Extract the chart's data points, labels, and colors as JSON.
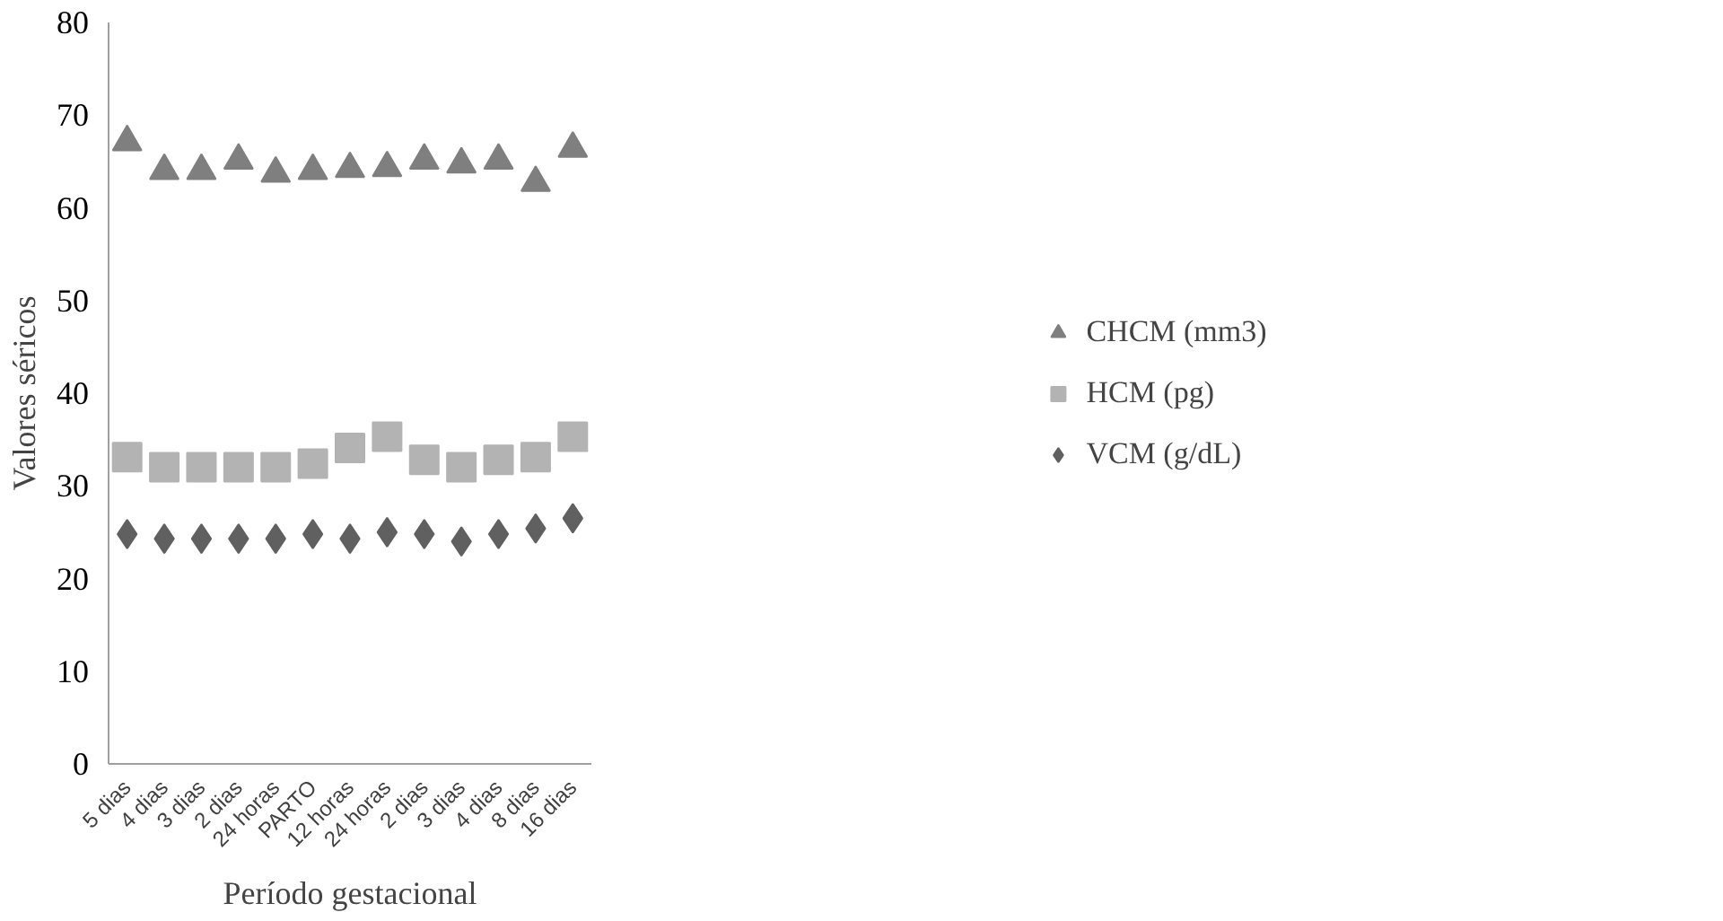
{
  "chart_data": {
    "type": "scatter",
    "xlabel": "Período gestacional",
    "ylabel": "Valores séricos",
    "categories": [
      "5 dias",
      "4 dias",
      "3 dias",
      "2 dias",
      "24 horas",
      "PARTO",
      "12 horas",
      "24 horas",
      "2 dias",
      "3 dias",
      "4 dias",
      "8 dias",
      "16 dias"
    ],
    "series": [
      {
        "name": "CHCM (mm3)",
        "color": "#7f7f7f",
        "marker": "triangle",
        "values": [
          67.1,
          64.0,
          64.0,
          65.1,
          63.7,
          64.0,
          64.2,
          64.3,
          65.1,
          64.7,
          65.1,
          62.7,
          66.4
        ]
      },
      {
        "name": "HCM (pg)",
        "color": "#b3b3b3",
        "marker": "square",
        "values": [
          33.1,
          32.0,
          32.0,
          32.0,
          32.0,
          32.4,
          34.1,
          35.3,
          32.8,
          32.0,
          32.8,
          33.1,
          35.3
        ]
      },
      {
        "name": "VCM (g/dL)",
        "color": "#606060",
        "marker": "diamond",
        "values": [
          24.8,
          24.3,
          24.3,
          24.3,
          24.3,
          24.8,
          24.3,
          25.0,
          24.8,
          24.0,
          24.8,
          25.4,
          26.5
        ]
      }
    ],
    "ylim": [
      0,
      80
    ],
    "yticks": [
      0,
      10,
      20,
      30,
      40,
      50,
      60,
      70,
      80
    ],
    "grid": false,
    "legend": "right"
  }
}
